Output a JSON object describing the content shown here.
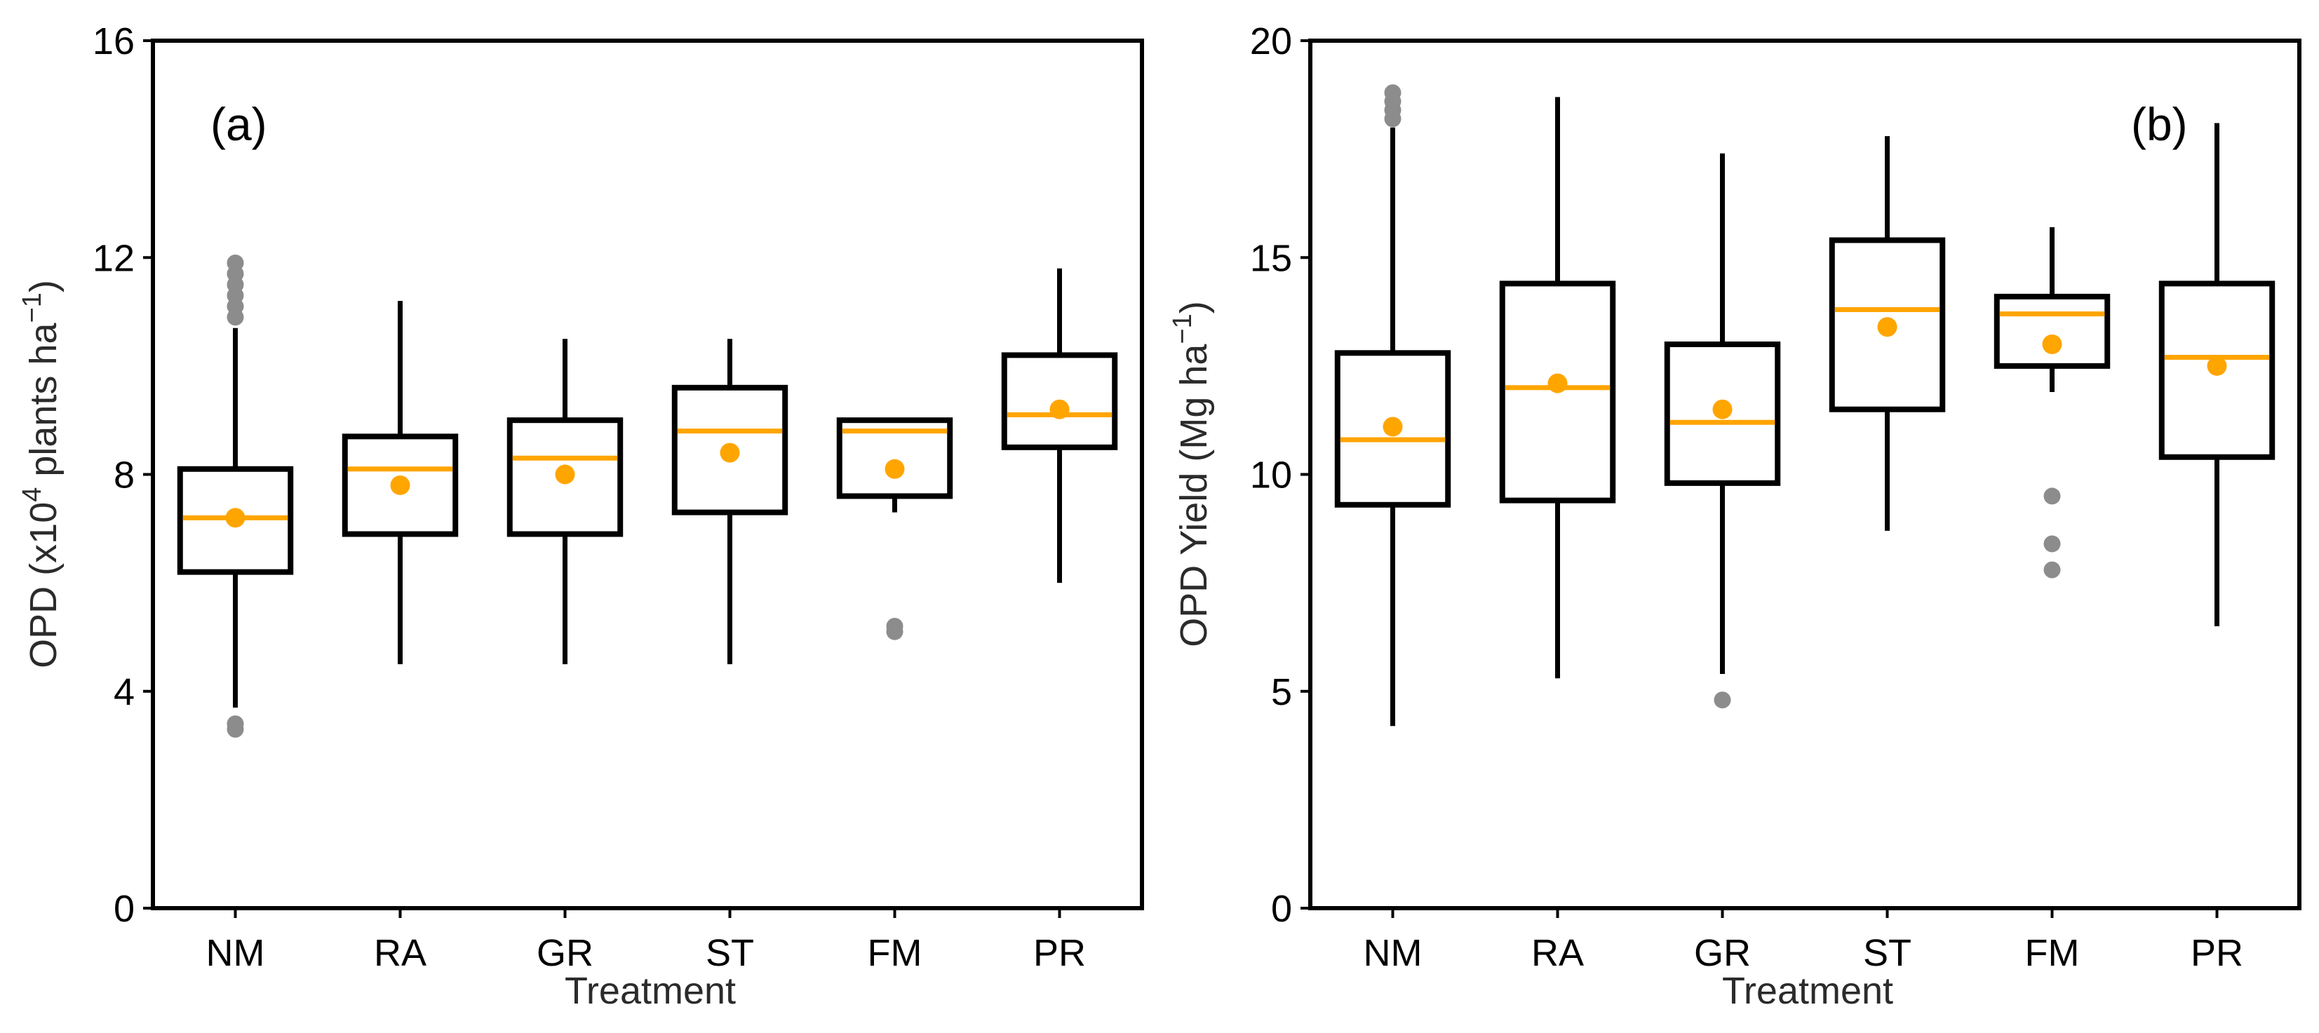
{
  "colors": {
    "axis": "#000000",
    "median": "#ffa500",
    "mean": "#ffa500",
    "outlier": "#8c8c8c",
    "box_fill": "#ffffff"
  },
  "chart_data": [
    {
      "type": "box",
      "panel_label": "(a)",
      "ylabel": "OPD (x10",
      "ylabel_sup": "4",
      "ylabel_rest": " plants ha",
      "ylabel_exp": "−1",
      "ylabel_close": ")",
      "xlabel": "Treatment",
      "ylim": [
        0,
        16
      ],
      "yticks": [
        0,
        4,
        8,
        12,
        16
      ],
      "ytick_labels": [
        "0",
        "4",
        "8",
        "12",
        "16"
      ],
      "categories": [
        "NM",
        "RA",
        "GR",
        "ST",
        "FM",
        "PR"
      ],
      "boxes": [
        {
          "label": "NM",
          "whislo": 3.7,
          "q1": 6.2,
          "med": 7.2,
          "q3": 8.1,
          "whishi": 10.7,
          "mean": 7.2,
          "fliers": [
            3.3,
            3.4,
            10.9,
            11.1,
            11.3,
            11.5,
            11.7,
            11.9
          ]
        },
        {
          "label": "RA",
          "whislo": 4.5,
          "q1": 6.9,
          "med": 8.1,
          "q3": 8.7,
          "whishi": 11.2,
          "mean": 7.8,
          "fliers": []
        },
        {
          "label": "GR",
          "whislo": 4.5,
          "q1": 6.9,
          "med": 8.3,
          "q3": 9.0,
          "whishi": 10.5,
          "mean": 8.0,
          "fliers": []
        },
        {
          "label": "ST",
          "whislo": 4.5,
          "q1": 7.3,
          "med": 8.8,
          "q3": 9.6,
          "whishi": 10.5,
          "mean": 8.4,
          "fliers": []
        },
        {
          "label": "FM",
          "whislo": 7.3,
          "q1": 7.6,
          "med": 8.8,
          "q3": 9.0,
          "whishi": 9.0,
          "mean": 8.1,
          "fliers": [
            5.1,
            5.2
          ]
        },
        {
          "label": "PR",
          "whislo": 6.0,
          "q1": 8.5,
          "med": 9.1,
          "q3": 10.2,
          "whishi": 11.8,
          "mean": 9.2,
          "fliers": []
        }
      ]
    },
    {
      "type": "box",
      "panel_label": "(b)",
      "ylabel": "OPD Yield (Mg ha",
      "ylabel_exp": "−1",
      "ylabel_close": ")",
      "xlabel": "Treatment",
      "ylim": [
        0,
        20
      ],
      "yticks": [
        0,
        5,
        10,
        15,
        20
      ],
      "ytick_labels": [
        "0",
        "5",
        "10",
        "15",
        "20"
      ],
      "categories": [
        "NM",
        "RA",
        "GR",
        "ST",
        "FM",
        "PR"
      ],
      "boxes": [
        {
          "label": "NM",
          "whislo": 4.2,
          "q1": 9.3,
          "med": 10.8,
          "q3": 12.8,
          "whishi": 18.0,
          "mean": 11.1,
          "fliers": [
            18.2,
            18.4,
            18.6,
            18.8
          ]
        },
        {
          "label": "RA",
          "whislo": 5.3,
          "q1": 9.4,
          "med": 12.0,
          "q3": 14.4,
          "whishi": 18.7,
          "mean": 12.1,
          "fliers": []
        },
        {
          "label": "GR",
          "whislo": 5.4,
          "q1": 9.8,
          "med": 11.2,
          "q3": 13.0,
          "whishi": 17.4,
          "mean": 11.5,
          "fliers": [
            4.8
          ]
        },
        {
          "label": "ST",
          "whislo": 8.7,
          "q1": 11.5,
          "med": 13.8,
          "q3": 15.4,
          "whishi": 17.8,
          "mean": 13.4,
          "fliers": []
        },
        {
          "label": "FM",
          "whislo": 11.9,
          "q1": 12.5,
          "med": 13.7,
          "q3": 14.1,
          "whishi": 15.7,
          "mean": 13.0,
          "fliers": [
            7.8,
            8.4,
            9.5
          ]
        },
        {
          "label": "PR",
          "whislo": 6.5,
          "q1": 10.4,
          "med": 12.7,
          "q3": 14.4,
          "whishi": 18.1,
          "mean": 12.5,
          "fliers": []
        }
      ]
    }
  ]
}
